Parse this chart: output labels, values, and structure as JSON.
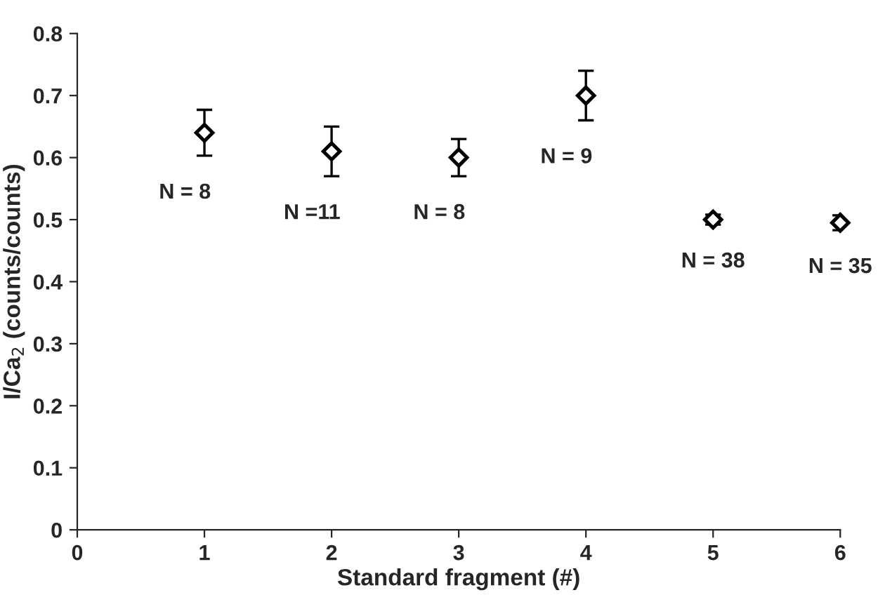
{
  "chart_data": {
    "type": "scatter",
    "xlabel": "Standard fragment (#)",
    "ylabel": "I/Ca$_{2}$ (counts/counts)",
    "xlim": [
      0,
      6
    ],
    "xticks": [
      0,
      1,
      2,
      3,
      4,
      5,
      6
    ],
    "ylim": [
      0,
      0.8
    ],
    "yticks": [
      0,
      0.1,
      0.2,
      0.3,
      0.4,
      0.5,
      0.6,
      0.7,
      0.8
    ],
    "grid": false,
    "marker": "diamond",
    "x": [
      1,
      2,
      3,
      4,
      5,
      6
    ],
    "series": [
      {
        "color": "#000000",
        "values": [
          0.64,
          0.61,
          0.6,
          0.7,
          0.5,
          0.495
        ],
        "errors": [
          0.037,
          0.04,
          0.03,
          0.04,
          0.008,
          0.012
        ]
      }
    ],
    "annotations": [
      "N = 8",
      "N =11",
      "N = 8",
      "N = 9",
      "N = 38",
      "N = 35"
    ]
  }
}
